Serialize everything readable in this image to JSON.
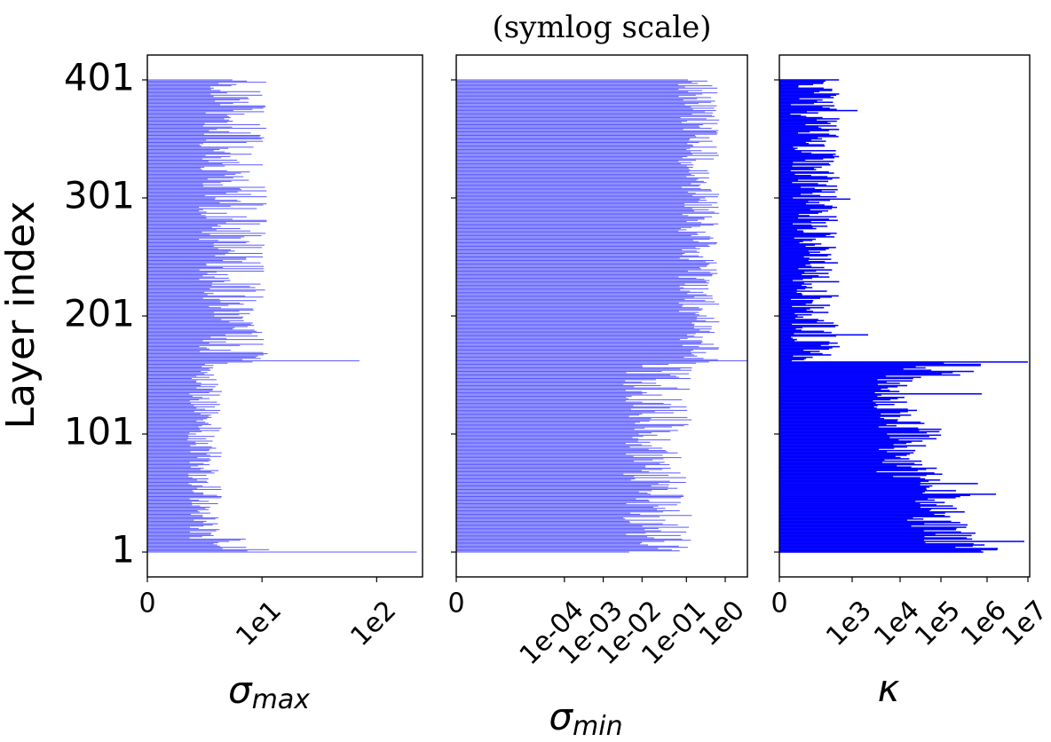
{
  "chart_data": {
    "title": "(symlog scale)",
    "ylabel": "Layer index",
    "type": "bar",
    "orientation": "horizontal",
    "n_layers": 401,
    "y_range": [
      1,
      401
    ],
    "y_ticks": [
      1,
      101,
      201,
      301,
      401
    ],
    "y_tick_labels": [
      "1",
      "101",
      "201",
      "301",
      "401"
    ],
    "panels": [
      {
        "id": "sigma_max",
        "xlabel_base": "σ",
        "xlabel_sub": "max",
        "scale": "symlog",
        "xlim_decades": [
          0,
          2.4
        ],
        "x_ticks": [
          "0",
          "1e1",
          "1e2"
        ],
        "color": "#0000ff",
        "bar_alpha": 0.65,
        "profile": [
          {
            "from": 1,
            "to": 3,
            "low": 0.8,
            "high": 1.15
          },
          {
            "from": 4,
            "to": 12,
            "low": 0.5,
            "high": 0.95
          },
          {
            "from": 13,
            "to": 160,
            "low": 0.35,
            "high": 0.65
          },
          {
            "from": 161,
            "to": 401,
            "low": 0.45,
            "high": 1.05
          }
        ],
        "spikes": [
          {
            "layer": 1,
            "value": 2.35
          },
          {
            "layer": 163,
            "value": 1.85
          }
        ]
      },
      {
        "id": "sigma_min",
        "xlabel_base": "σ",
        "xlabel_sub": "min",
        "scale": "symlog",
        "xlim_decades": [
          0,
          1.05
        ],
        "x_ticks": [
          "0",
          "1e-04",
          "1e-03",
          "1e-02",
          "1e-01",
          "1e0"
        ],
        "color": "#0000ff",
        "bar_alpha": 0.65,
        "profile": [
          {
            "from": 1,
            "to": 160,
            "low": 0.6,
            "high": 0.85
          },
          {
            "from": 161,
            "to": 401,
            "low": 0.8,
            "high": 0.95
          }
        ],
        "spikes": [
          {
            "layer": 163,
            "value": 1.05
          }
        ]
      },
      {
        "id": "kappa",
        "xlabel_base": "κ",
        "xlabel_sub": "",
        "scale": "symlog",
        "xlim_decades": [
          0,
          7.05
        ],
        "x_ticks": [
          "0",
          "1e3",
          "1e4",
          "1e5",
          "1e6",
          "1e7"
        ],
        "color": "#0000ff",
        "bar_alpha": 1.0,
        "profile": [
          {
            "from": 1,
            "to": 8,
            "low": 4.8,
            "high": 6.8
          },
          {
            "from": 9,
            "to": 60,
            "low": 3.5,
            "high": 5.6
          },
          {
            "from": 61,
            "to": 110,
            "low": 2.6,
            "high": 4.6
          },
          {
            "from": 111,
            "to": 150,
            "low": 2.6,
            "high": 4.0
          },
          {
            "from": 151,
            "to": 162,
            "low": 3.4,
            "high": 6.2
          },
          {
            "from": 163,
            "to": 401,
            "low": 0.3,
            "high": 1.7
          }
        ],
        "spikes": [
          {
            "layer": 10,
            "value": 6.9
          },
          {
            "layer": 162,
            "value": 7.0
          },
          {
            "layer": 50,
            "value": 6.1
          },
          {
            "layer": 135,
            "value": 5.7
          },
          {
            "layer": 185,
            "value": 2.5
          },
          {
            "layer": 300,
            "value": 2.0
          },
          {
            "layer": 375,
            "value": 2.2
          }
        ]
      }
    ]
  }
}
